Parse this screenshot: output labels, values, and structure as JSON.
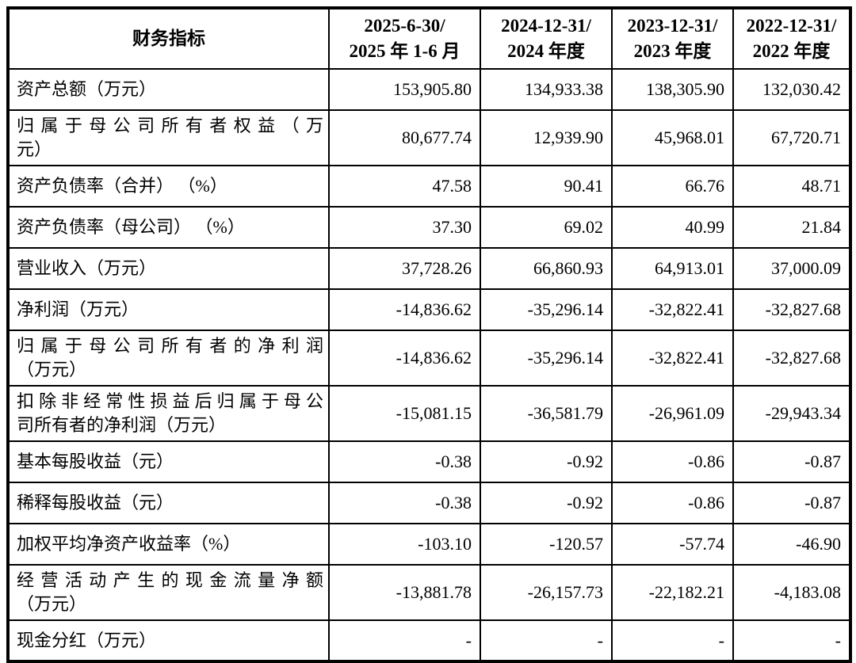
{
  "table": {
    "header": {
      "indicator": "财务指标",
      "periods": [
        {
          "line1": "2025-6-30/",
          "line2": "2025 年 1-6 月"
        },
        {
          "line1": "2024-12-31/",
          "line2": "2024 年度"
        },
        {
          "line1": "2023-12-31/",
          "line2": "2023 年度"
        },
        {
          "line1": "2022-12-31/",
          "line2": "2022 年度"
        }
      ]
    },
    "rows": [
      {
        "label_lines": [
          "资产总额（万元）"
        ],
        "values": [
          "153,905.80",
          "134,933.38",
          "138,305.90",
          "132,030.42"
        ]
      },
      {
        "label_lines": [
          "归属于母公司所有者权益（万",
          "元）"
        ],
        "values": [
          "80,677.74",
          "12,939.90",
          "45,968.01",
          "67,720.71"
        ]
      },
      {
        "label_lines": [
          "资产负债率（合并） （%）"
        ],
        "values": [
          "47.58",
          "90.41",
          "66.76",
          "48.71"
        ]
      },
      {
        "label_lines": [
          "资产负债率（母公司） （%）"
        ],
        "values": [
          "37.30",
          "69.02",
          "40.99",
          "21.84"
        ]
      },
      {
        "label_lines": [
          "营业收入（万元）"
        ],
        "values": [
          "37,728.26",
          "66,860.93",
          "64,913.01",
          "37,000.09"
        ]
      },
      {
        "label_lines": [
          "净利润（万元）"
        ],
        "values": [
          "-14,836.62",
          "-35,296.14",
          "-32,822.41",
          "-32,827.68"
        ]
      },
      {
        "label_lines": [
          "归属于母公司所有者的净利润",
          "（万元）"
        ],
        "values": [
          "-14,836.62",
          "-35,296.14",
          "-32,822.41",
          "-32,827.68"
        ]
      },
      {
        "label_lines": [
          "扣除非经常性损益后归属于母公",
          "司所有者的净利润（万元）"
        ],
        "values": [
          "-15,081.15",
          "-36,581.79",
          "-26,961.09",
          "-29,943.34"
        ]
      },
      {
        "label_lines": [
          "基本每股收益（元）"
        ],
        "values": [
          "-0.38",
          "-0.92",
          "-0.86",
          "-0.87"
        ]
      },
      {
        "label_lines": [
          "稀释每股收益（元）"
        ],
        "values": [
          "-0.38",
          "-0.92",
          "-0.86",
          "-0.87"
        ]
      },
      {
        "label_lines": [
          "加权平均净资产收益率（%）"
        ],
        "values": [
          "-103.10",
          "-120.57",
          "-57.74",
          "-46.90"
        ]
      },
      {
        "label_lines": [
          "经营活动产生的现金流量净额",
          "（万元）"
        ],
        "values": [
          "-13,881.78",
          "-26,157.73",
          "-22,182.21",
          "-4,183.08"
        ]
      },
      {
        "label_lines": [
          "现金分红（万元）"
        ],
        "values": [
          "-",
          "-",
          "-",
          "-"
        ]
      }
    ]
  },
  "colors": {
    "background": "#ffffff",
    "border": "#000000",
    "text": "#000000"
  }
}
